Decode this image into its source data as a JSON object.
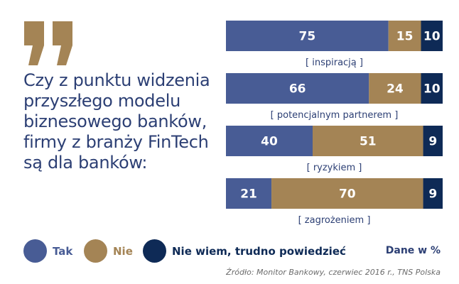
{
  "question": "Czy z punktu widzenia przyszłego modelu biznesowego banków, firmy z branży FinTech są dla banków:",
  "colors": {
    "tak": "#485c95",
    "nie": "#a48455",
    "nie_wiem": "#0e2a56",
    "heading": "#2c3f74",
    "quote": "#a48455"
  },
  "chart_data": {
    "type": "bar",
    "orientation": "horizontal-stacked-100",
    "categories": [
      "[ inspiracją ]",
      "[ potencjalnym partnerem ]",
      "[ ryzykiem ]",
      "[ zagrożeniem ]"
    ],
    "series": [
      {
        "name": "Tak",
        "values": [
          75,
          66,
          40,
          21
        ]
      },
      {
        "name": "Nie",
        "values": [
          15,
          24,
          51,
          70
        ]
      },
      {
        "name": "Nie wiem, trudno powiedzieć",
        "values": [
          10,
          10,
          9,
          9
        ]
      }
    ],
    "xlim": [
      0,
      100
    ]
  },
  "legend": [
    {
      "label": "Tak"
    },
    {
      "label": "Nie"
    },
    {
      "label": "Nie wiem, trudno powiedzieć"
    }
  ],
  "unit_note": "Dane w %",
  "source": "Źródło: Monitor Bankowy, czerwiec 2016 r., TNS Polska"
}
